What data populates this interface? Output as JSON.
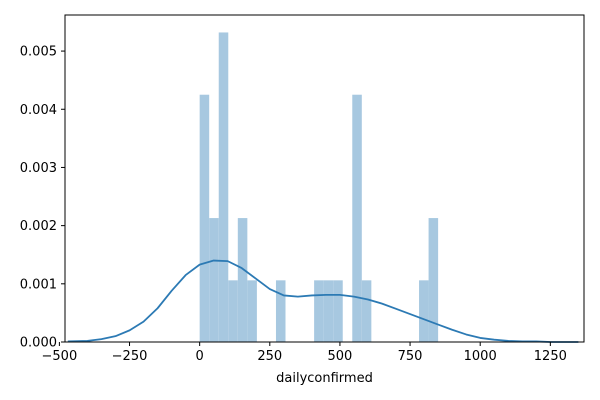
{
  "chart_data": {
    "type": "bar",
    "title": "",
    "xlabel": "dailyconfirmed",
    "ylabel": "",
    "xlim": [
      -480,
      1370
    ],
    "ylim": [
      0,
      0.00562
    ],
    "x_ticks": [
      -500,
      -250,
      0,
      250,
      500,
      750,
      1000,
      1250
    ],
    "x_tick_labels": [
      "−500",
      "−250",
      "0",
      "250",
      "500",
      "750",
      "1000",
      "1250"
    ],
    "y_ticks": [
      0,
      0.001,
      0.002,
      0.003,
      0.004,
      0.005
    ],
    "y_tick_labels": [
      "0.000",
      "0.001",
      "0.002",
      "0.003",
      "0.004",
      "0.005"
    ],
    "grid": false,
    "legend": "none",
    "bars_color": "#a7c8e0",
    "kde_color": "#2c7ab4",
    "histogram": {
      "bins": [
        {
          "x0": 0,
          "x1": 34,
          "value": 0.00425
        },
        {
          "x0": 34,
          "x1": 68,
          "value": 0.00213
        },
        {
          "x0": 68,
          "x1": 102,
          "value": 0.00532
        },
        {
          "x0": 102,
          "x1": 136,
          "value": 0.00106
        },
        {
          "x0": 136,
          "x1": 170,
          "value": 0.00213
        },
        {
          "x0": 170,
          "x1": 204,
          "value": 0.00106
        },
        {
          "x0": 272,
          "x1": 306,
          "value": 0.00106
        },
        {
          "x0": 408,
          "x1": 442,
          "value": 0.00106
        },
        {
          "x0": 442,
          "x1": 476,
          "value": 0.00106
        },
        {
          "x0": 476,
          "x1": 510,
          "value": 0.00106
        },
        {
          "x0": 544,
          "x1": 578,
          "value": 0.00425
        },
        {
          "x0": 578,
          "x1": 612,
          "value": 0.00106
        },
        {
          "x0": 782,
          "x1": 816,
          "value": 0.00106
        },
        {
          "x0": 816,
          "x1": 850,
          "value": 0.00213
        }
      ]
    },
    "kde": {
      "x": [
        -470,
        -400,
        -350,
        -300,
        -250,
        -200,
        -150,
        -100,
        -50,
        0,
        50,
        100,
        150,
        200,
        250,
        300,
        350,
        400,
        450,
        500,
        550,
        600,
        650,
        700,
        750,
        800,
        850,
        900,
        950,
        1000,
        1050,
        1100,
        1150,
        1200,
        1250,
        1300,
        1350
      ],
      "y": [
        1e-05,
        2e-05,
        5e-05,
        0.0001,
        0.0002,
        0.00035,
        0.00058,
        0.00088,
        0.00115,
        0.00133,
        0.0014,
        0.00139,
        0.00127,
        0.00109,
        0.00091,
        0.0008,
        0.00078,
        0.0008,
        0.00081,
        0.00081,
        0.00078,
        0.00073,
        0.00066,
        0.00057,
        0.00048,
        0.00039,
        0.0003,
        0.00021,
        0.00013,
        7e-05,
        4e-05,
        2e-05,
        1e-05,
        1e-05,
        0.0,
        0.0,
        0.0
      ]
    }
  }
}
